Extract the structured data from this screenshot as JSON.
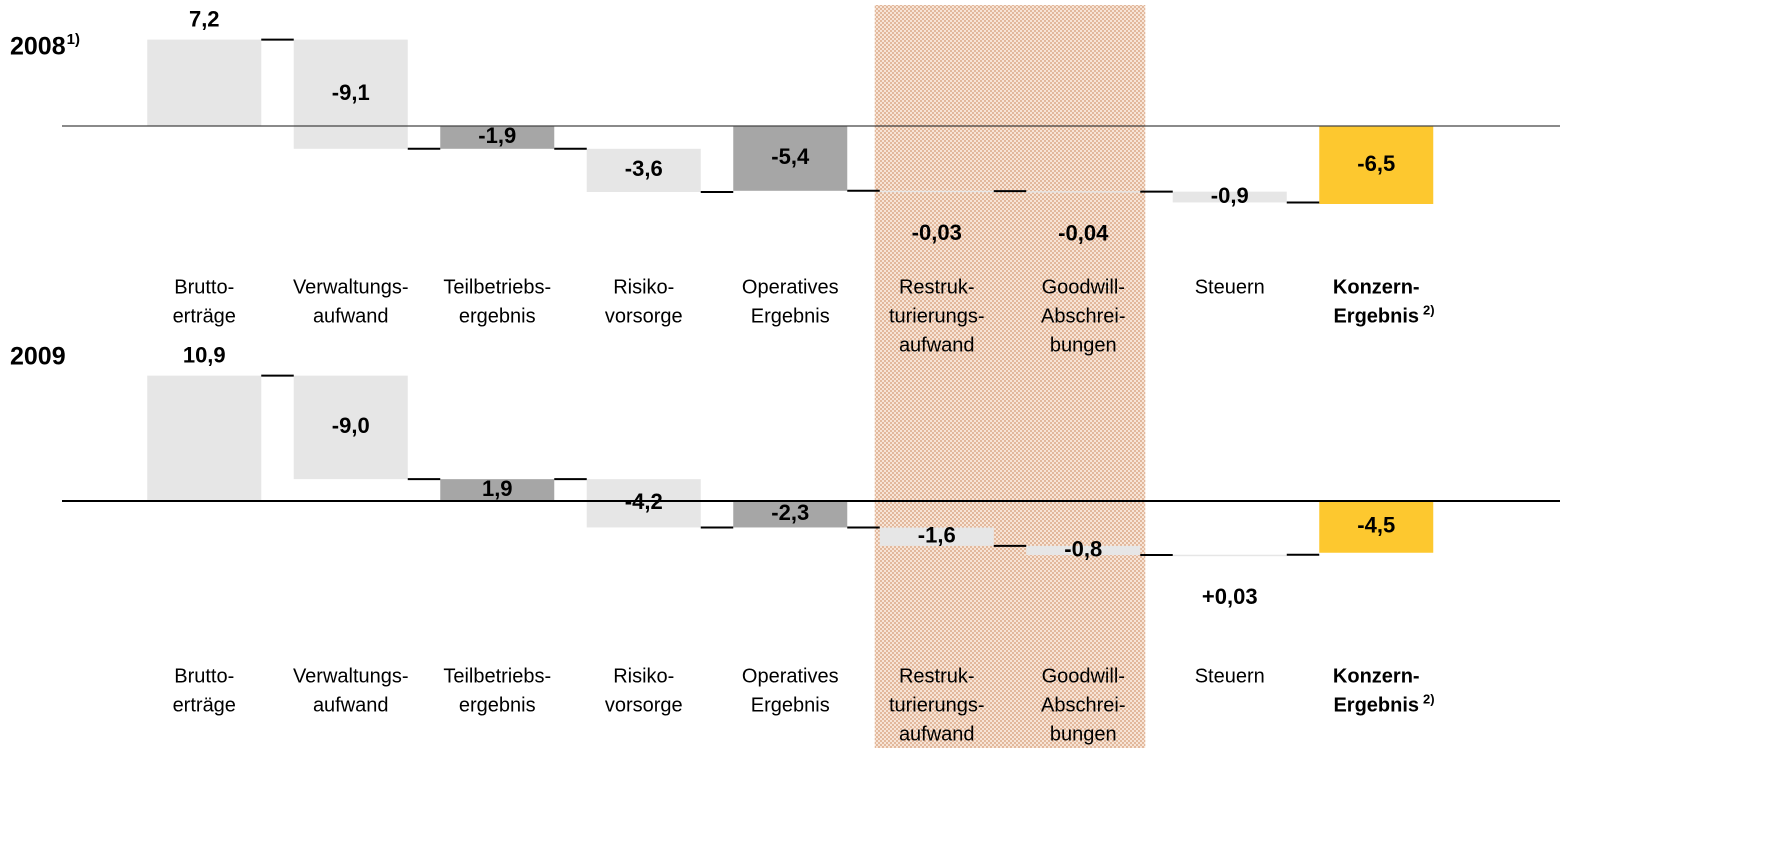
{
  "chart_data": [
    {
      "type": "waterfall",
      "title": "2008",
      "title_note": "1)",
      "categories": [
        [
          "Brutto-",
          "erträge"
        ],
        [
          "Verwaltungs-",
          "aufwand"
        ],
        [
          "Teilbetriebs-",
          "ergebnis"
        ],
        [
          "Risiko-",
          "vorsorge"
        ],
        [
          "Operatives",
          "Ergebnis"
        ],
        [
          "Restruk-",
          "turierungs-",
          "aufwand"
        ],
        [
          "Goodwill-",
          "Abschrei-",
          "bungen"
        ],
        [
          "Steuern"
        ],
        [
          "Konzern-",
          "Ergebnis"
        ]
      ],
      "category_notes": [
        null,
        null,
        null,
        null,
        null,
        null,
        null,
        null,
        "2)"
      ],
      "values": [
        7.2,
        -9.1,
        -1.9,
        -3.6,
        -5.4,
        -0.03,
        -0.04,
        -0.9,
        -6.5
      ],
      "value_labels": [
        "7,2",
        "-9,1",
        "-1,9",
        "-3,6",
        "-5,4",
        "-0,03",
        "-0,04",
        "-0,9",
        "-6,5"
      ],
      "is_total": [
        false,
        false,
        true,
        false,
        true,
        false,
        false,
        false,
        true
      ],
      "colors": [
        "#e6e6e6",
        "#e6e6e6",
        "#a6a6a6",
        "#e6e6e6",
        "#a6a6a6",
        "#e6e6e6",
        "#e6e6e6",
        "#e6e6e6",
        "#fdc82f"
      ],
      "bold_categories": [
        8
      ],
      "highlight_categories": [
        5,
        6
      ],
      "ylim": [
        -8,
        8
      ]
    },
    {
      "type": "waterfall",
      "title": "2009",
      "categories": [
        [
          "Brutto-",
          "erträge"
        ],
        [
          "Verwaltungs-",
          "aufwand"
        ],
        [
          "Teilbetriebs-",
          "ergebnis"
        ],
        [
          "Risiko-",
          "vorsorge"
        ],
        [
          "Operatives",
          "Ergebnis"
        ],
        [
          "Restruk-",
          "turierungs-",
          "aufwand"
        ],
        [
          "Goodwill-",
          "Abschrei-",
          "bungen"
        ],
        [
          "Steuern"
        ],
        [
          "Konzern-",
          "Ergebnis"
        ]
      ],
      "category_notes": [
        null,
        null,
        null,
        null,
        null,
        null,
        null,
        null,
        "2)"
      ],
      "values": [
        10.9,
        -9.0,
        1.9,
        -4.2,
        -2.3,
        -1.6,
        -0.8,
        0.03,
        -4.5
      ],
      "value_labels": [
        "10,9",
        "-9,0",
        "1,9",
        "-4,2",
        "-2,3",
        "-1,6",
        "-0,8",
        "+0,03",
        "-4,5"
      ],
      "is_total": [
        false,
        false,
        true,
        false,
        true,
        false,
        false,
        false,
        true
      ],
      "colors": [
        "#e6e6e6",
        "#e6e6e6",
        "#a6a6a6",
        "#e6e6e6",
        "#a6a6a6",
        "#e6e6e6",
        "#e6e6e6",
        "#e6e6e6",
        "#fdc82f"
      ],
      "bold_categories": [
        8
      ],
      "highlight_categories": [
        5,
        6
      ],
      "ylim": [
        -8,
        11
      ]
    }
  ]
}
